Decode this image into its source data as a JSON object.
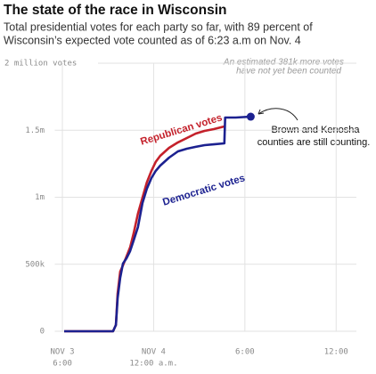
{
  "chart_data": {
    "type": "line",
    "title": "The state of the race in Wisconsin",
    "subtitle": [
      "Total presidential votes for each party so far, with 89 percent of",
      "Wisconsin’s expected vote counted as of 6:23 a.m on Nov. 4"
    ],
    "x": [
      "Nov 3 18:07",
      "Nov 3 21:20",
      "Nov 3 21:31",
      "Nov 3 21:38",
      "Nov 3 21:48",
      "Nov 3 21:59",
      "Nov 3 22:13",
      "Nov 3 22:27",
      "Nov 3 22:41",
      "Nov 3 22:58",
      "Nov 3 23:16",
      "Nov 3 23:33",
      "Nov 3 23:51",
      "Nov 4 00:08",
      "Nov 4 00:26",
      "Nov 4 01:01",
      "Nov 4 01:36",
      "Nov 4 02:11",
      "Nov 4 02:46",
      "Nov 4 03:21",
      "Nov 4 03:57",
      "Nov 4 04:39",
      "Nov 4 04:42",
      "Nov 4 05:24",
      "Nov 4 06:23"
    ],
    "series": [
      {
        "name": "Republican votes",
        "color": "#c4212b",
        "values": [
          0,
          0,
          47000,
          279000,
          445000,
          492000,
          558000,
          625000,
          731000,
          877000,
          997000,
          1110000,
          1196000,
          1263000,
          1309000,
          1369000,
          1409000,
          1442000,
          1475000,
          1495000,
          1508000,
          1528000,
          null,
          null,
          null
        ]
      },
      {
        "name": "Democratic votes",
        "color": "#1c2190",
        "values": [
          0,
          0,
          47000,
          246000,
          399000,
          505000,
          545000,
          598000,
          678000,
          777000,
          957000,
          1063000,
          1143000,
          1196000,
          1236000,
          1296000,
          1342000,
          1362000,
          1376000,
          1389000,
          1395000,
          1402000,
          1595000,
          1595000,
          1601000
        ]
      }
    ],
    "xlim": [
      "Nov 3 17:30",
      "Nov 4 13:20"
    ],
    "xticks": [
      {
        "value": "Nov 3 18:00",
        "label": "NOV 3",
        "sublabel": "6:00"
      },
      {
        "value": "Nov 4 00:00",
        "label": "NOV 4",
        "sublabel": "12:00 a.m."
      },
      {
        "value": "Nov 4 06:00",
        "label": "6:00"
      },
      {
        "value": "Nov 4 12:00",
        "label": "12:00"
      }
    ],
    "ylim": [
      0,
      2000000
    ],
    "yticks": [
      0,
      {
        "value": 500000,
        "label": "500k"
      },
      {
        "value": 1000000,
        "label": "1m"
      },
      {
        "value": 1500000,
        "label": "1.5m"
      },
      {
        "value": 2000000,
        "label": "2 million votes"
      }
    ],
    "grid": true,
    "note_top": [
      "An estimated 381k more votes",
      "have not yet been counted"
    ],
    "note_dot": [
      "Brown and Kenosha",
      "counties are still counting."
    ]
  }
}
